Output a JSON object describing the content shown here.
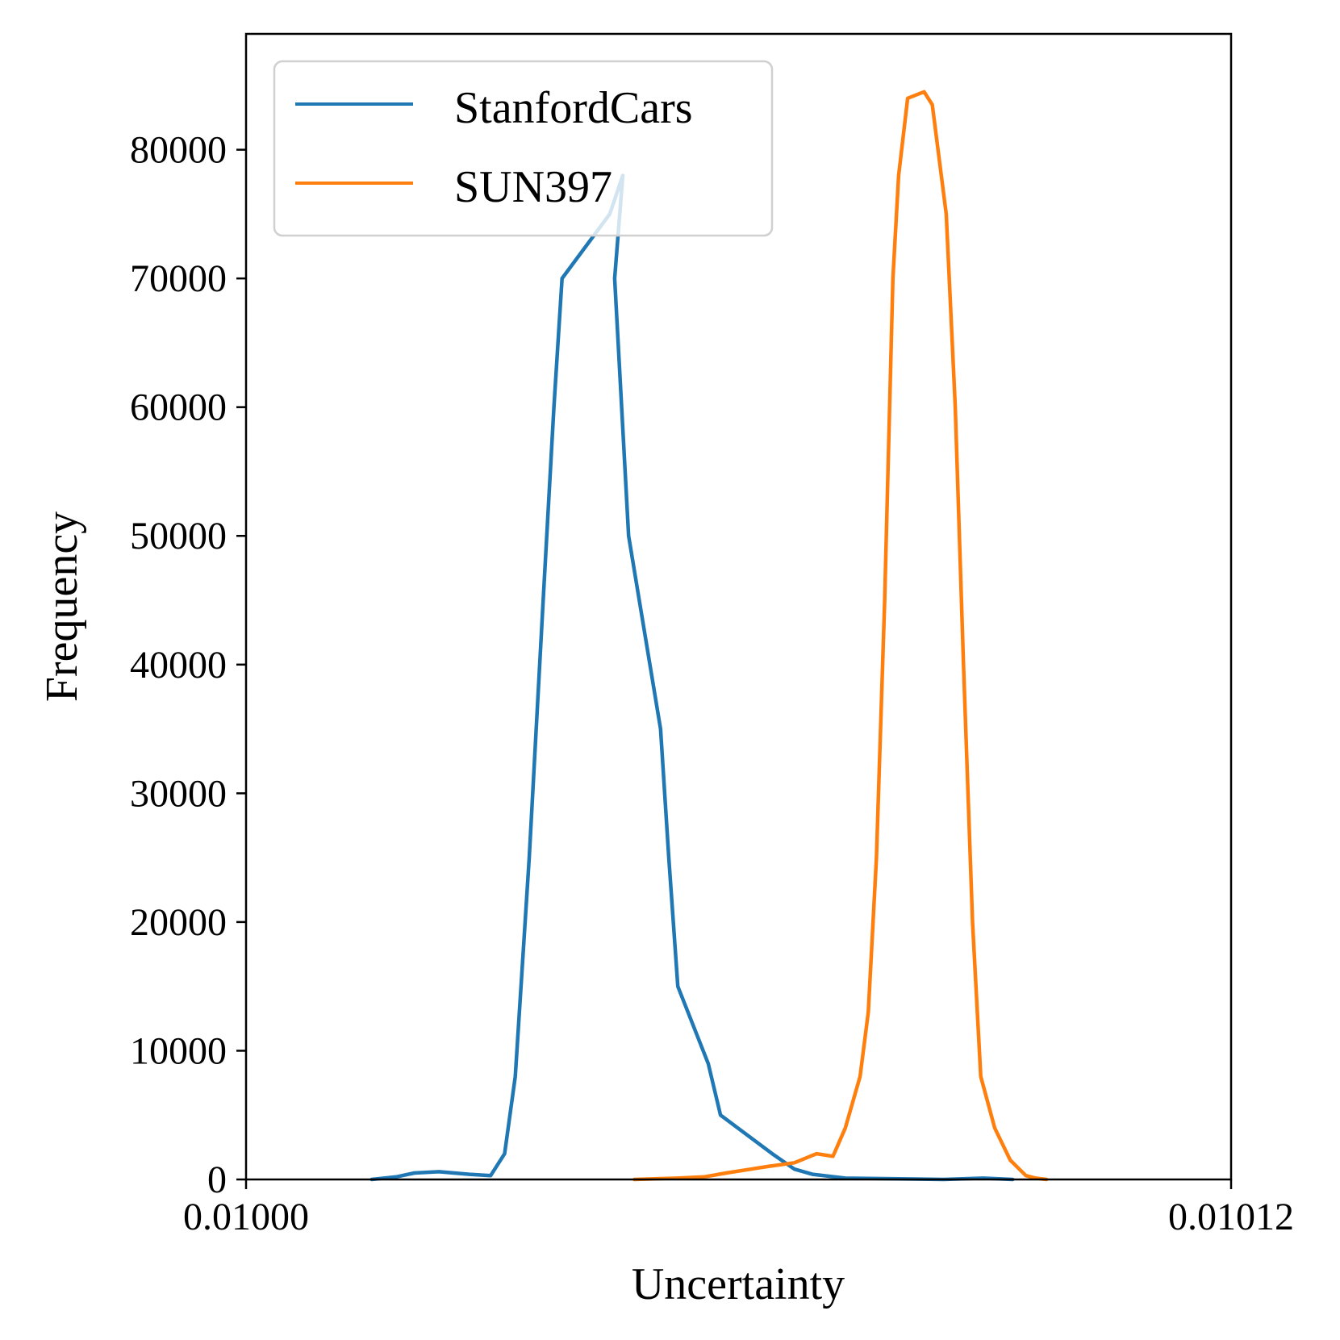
{
  "chart_data": {
    "type": "line",
    "title": "",
    "xlabel": "Uncertainty",
    "ylabel": "Frequency",
    "xlim": [
      0.01,
      0.01012
    ],
    "ylim": [
      0,
      89000
    ],
    "x_ticks": [
      0.01,
      0.01012
    ],
    "x_tick_labels": [
      "0.01000",
      "0.01012"
    ],
    "y_ticks": [
      0,
      10000,
      20000,
      30000,
      40000,
      50000,
      60000,
      70000,
      80000
    ],
    "y_tick_labels": [
      "0",
      "10000",
      "20000",
      "30000",
      "40000",
      "50000",
      "60000",
      "70000",
      "80000"
    ],
    "grid": false,
    "legend_position": "upper-left",
    "series": [
      {
        "name": "StanfordCars",
        "color": "#1f77b4",
        "points": [
          [
            0.0100153,
            0
          ],
          [
            0.0100183,
            200
          ],
          [
            0.0100205,
            500
          ],
          [
            0.0100235,
            600
          ],
          [
            0.0100272,
            400
          ],
          [
            0.0100298,
            300
          ],
          [
            0.0100315,
            2000
          ],
          [
            0.0100328,
            8000
          ],
          [
            0.0100345,
            25000
          ],
          [
            0.0100362,
            45000
          ],
          [
            0.0100375,
            60000
          ],
          [
            0.0100385,
            70000
          ],
          [
            0.0100443,
            75000
          ],
          [
            0.0100459,
            78000
          ],
          [
            0.0100449,
            70000
          ],
          [
            0.0100466,
            50000
          ],
          [
            0.0100505,
            35000
          ],
          [
            0.0100515,
            25000
          ],
          [
            0.0100526,
            15000
          ],
          [
            0.0100563,
            9000
          ],
          [
            0.0100578,
            5000
          ],
          [
            0.0100641,
            2000
          ],
          [
            0.0100668,
            800
          ],
          [
            0.010069,
            400
          ],
          [
            0.010073,
            100
          ],
          [
            0.010085,
            0
          ],
          [
            0.0100898,
            100
          ],
          [
            0.0100934,
            0
          ]
        ]
      },
      {
        "name": "SUN397",
        "color": "#ff7f0e",
        "points": [
          [
            0.0100473,
            0
          ],
          [
            0.0100525,
            100
          ],
          [
            0.0100558,
            200
          ],
          [
            0.0100585,
            500
          ],
          [
            0.0100615,
            800
          ],
          [
            0.0100635,
            1000
          ],
          [
            0.0100668,
            1300
          ],
          [
            0.0100695,
            2000
          ],
          [
            0.0100715,
            1800
          ],
          [
            0.010073,
            4000
          ],
          [
            0.0100748,
            8000
          ],
          [
            0.0100758,
            13000
          ],
          [
            0.0100768,
            25000
          ],
          [
            0.0100778,
            45000
          ],
          [
            0.0100788,
            70000
          ],
          [
            0.0100795,
            78000
          ],
          [
            0.0100806,
            84000
          ],
          [
            0.0100826,
            84500
          ],
          [
            0.0100836,
            83500
          ],
          [
            0.0100853,
            75000
          ],
          [
            0.0100864,
            60000
          ],
          [
            0.0100874,
            40000
          ],
          [
            0.0100885,
            20000
          ],
          [
            0.0100895,
            8000
          ],
          [
            0.0100912,
            4000
          ],
          [
            0.0100931,
            1500
          ],
          [
            0.010095,
            300
          ],
          [
            0.0100962,
            100
          ],
          [
            0.0100975,
            0
          ]
        ]
      }
    ]
  }
}
